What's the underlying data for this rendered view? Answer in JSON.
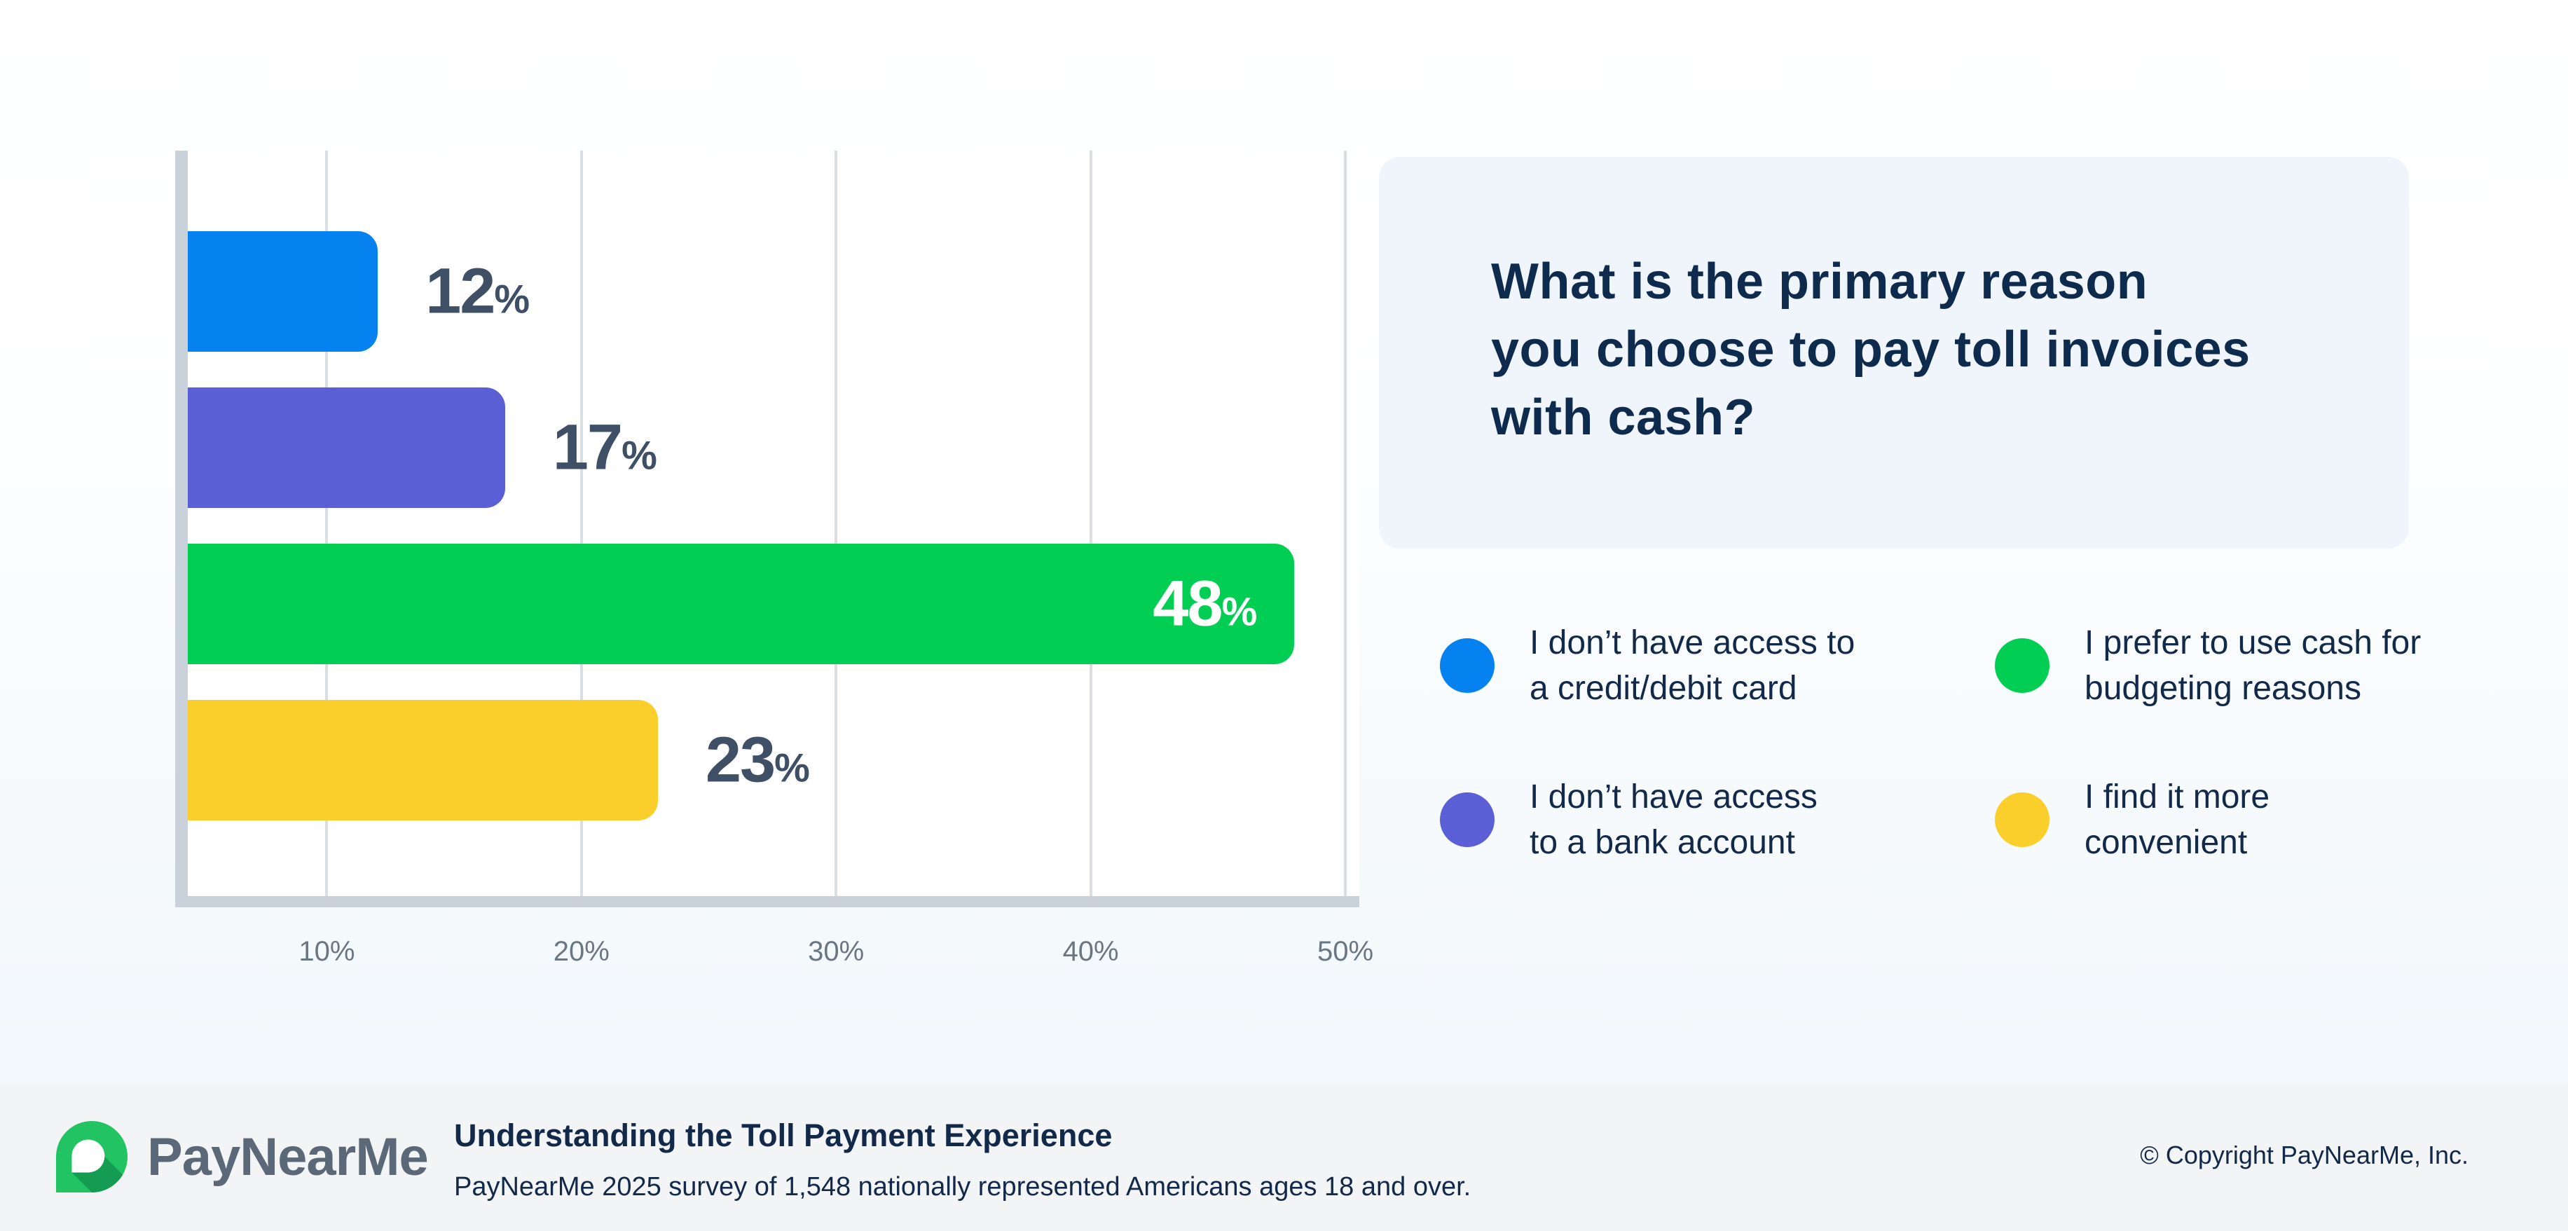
{
  "chart_data": {
    "type": "bar",
    "orientation": "horizontal",
    "title": "What is the primary reason you choose to pay toll invoices with cash?",
    "unit": "%",
    "xlim": [
      0,
      50
    ],
    "x_ticks": [
      10,
      20,
      30,
      40,
      50
    ],
    "grid": true,
    "categories": [
      "I don’t have access to a credit/debit card",
      "I don’t have access to a bank account",
      "I prefer to use cash for budgeting reasons",
      "I find it more convenient"
    ],
    "values": [
      12,
      17,
      48,
      23
    ],
    "bars": [
      {
        "category": "I don’t have access to a credit/debit card",
        "value": 12,
        "value_label": "12",
        "color": "#0682F0",
        "label_placement": "outside"
      },
      {
        "category": "I don’t have access to a bank account",
        "value": 17,
        "value_label": "17",
        "color": "#5B5FD6",
        "label_placement": "outside"
      },
      {
        "category": "I prefer to use cash for budgeting reasons",
        "value": 48,
        "value_label": "48",
        "color": "#01CE53",
        "label_placement": "inside"
      },
      {
        "category": "I find it more convenient",
        "value": 23,
        "value_label": "23",
        "color": "#FBCF2B",
        "label_placement": "outside"
      }
    ],
    "legend_position": "right"
  },
  "question_card": {
    "text": "What is the primary reason\nyou choose to pay toll invoices\nwith cash?"
  },
  "legend": {
    "items": [
      {
        "label": "I don’t have access to\na credit/debit card",
        "color": "#0682F0",
        "col": 0,
        "row": 0
      },
      {
        "label": "I prefer to use cash for\nbudgeting reasons",
        "color": "#01CE53",
        "col": 1,
        "row": 0
      },
      {
        "label": "I don’t have access\nto a bank account",
        "color": "#5B5FD6",
        "col": 0,
        "row": 1
      },
      {
        "label": "I find it more\nconvenient",
        "color": "#FBCF2B",
        "col": 1,
        "row": 1
      }
    ]
  },
  "footer": {
    "brand": "PayNearMe",
    "title": "Understanding the Toll Payment Experience",
    "subtitle": "PayNearMe 2025 survey of 1,548 nationally represented Americans ages 18 and over.",
    "copyright": "© Copyright PayNearMe, Inc."
  },
  "colors": {
    "navy_text": "#0E2A4D",
    "value_label": "#3F4F66",
    "tick_label": "#6A7682",
    "axis": "#C9D2DA",
    "gridline": "#D9DEE3",
    "card_bg": "#EFF5FA",
    "footer_bg": "#F3F4F5",
    "logo_green": "#21C362",
    "logo_green_dark": "#149C52",
    "wordmark_gray": "#5A6877"
  }
}
